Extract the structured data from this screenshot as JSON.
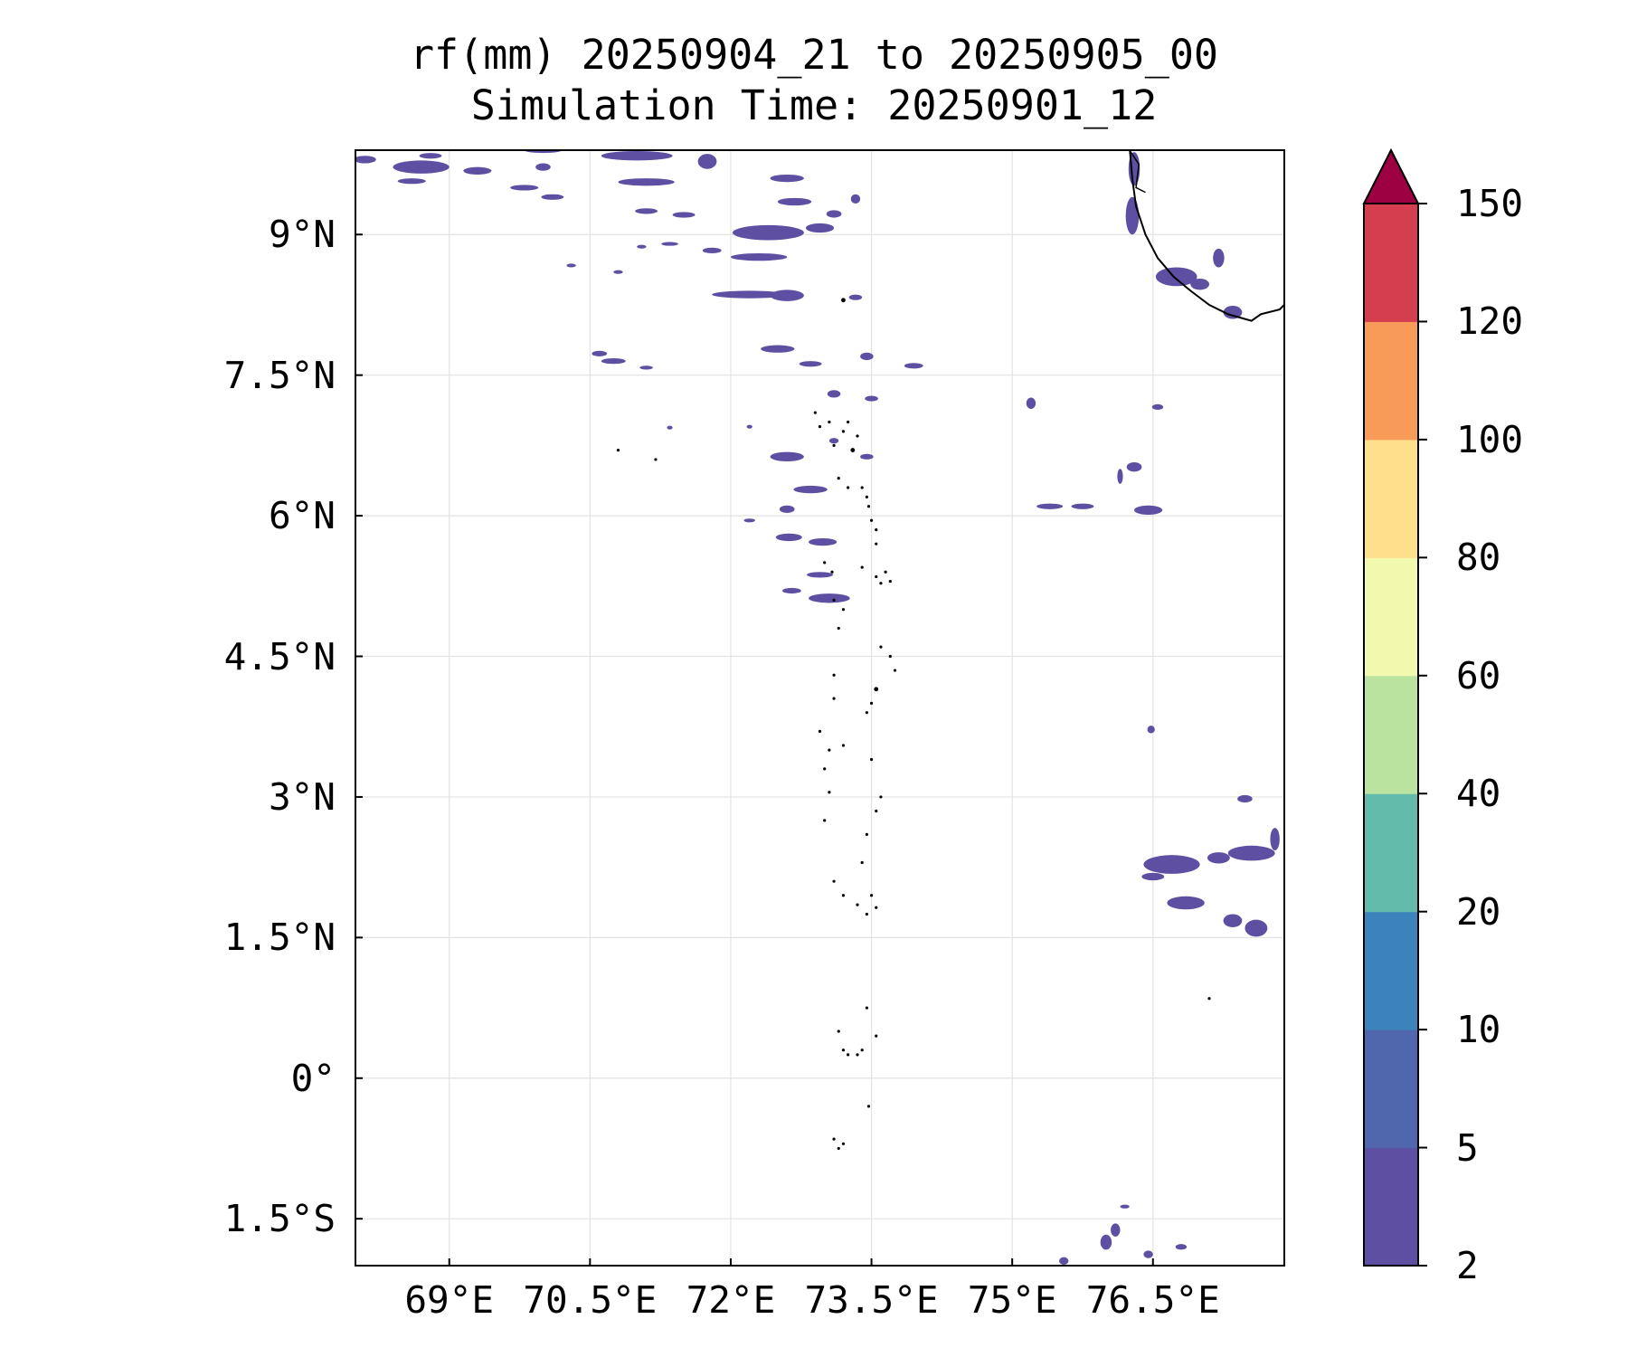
{
  "title": {
    "line1": "rf(mm) 20250904_21 to 20250905_00",
    "line2": "Simulation Time: 20250901_12"
  },
  "map": {
    "lon_range": [
      68.0,
      77.9
    ],
    "lat_range": [
      -2.0,
      9.9
    ],
    "lat_ticks": [
      {
        "value": 9.0,
        "label": "9°N"
      },
      {
        "value": 7.5,
        "label": "7.5°N"
      },
      {
        "value": 6.0,
        "label": "6°N"
      },
      {
        "value": 4.5,
        "label": "4.5°N"
      },
      {
        "value": 3.0,
        "label": "3°N"
      },
      {
        "value": 1.5,
        "label": "1.5°N"
      },
      {
        "value": 0.0,
        "label": "0°"
      },
      {
        "value": -1.5,
        "label": "1.5°S"
      }
    ],
    "lon_ticks": [
      {
        "value": 69.0,
        "label": "69°E"
      },
      {
        "value": 70.5,
        "label": "70.5°E"
      },
      {
        "value": 72.0,
        "label": "72°E"
      },
      {
        "value": 73.5,
        "label": "73.5°E"
      },
      {
        "value": 75.0,
        "label": "75°E"
      },
      {
        "value": 76.5,
        "label": "76.5°E"
      }
    ],
    "grid": true,
    "rain_color": "#5e4fa2",
    "coast_color": "#000000"
  },
  "colorbar": {
    "levels": [
      "2",
      "5",
      "10",
      "20",
      "40",
      "60",
      "80",
      "100",
      "120",
      "150"
    ],
    "colors": [
      "#5e4fa2",
      "#5066ad",
      "#3b84bb",
      "#63bcab",
      "#bbe3a0",
      "#f2f9af",
      "#fddf8c",
      "#f89b58",
      "#d53e4f"
    ],
    "extend_color": "#9e0142",
    "extend": "max"
  }
}
